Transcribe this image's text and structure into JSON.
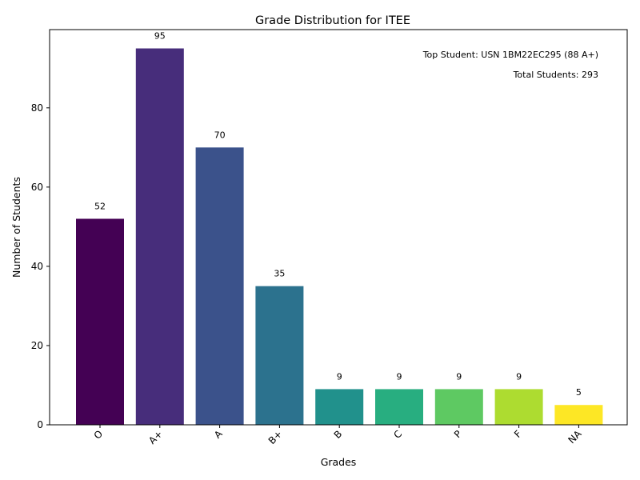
{
  "chart_data": {
    "type": "bar",
    "title": "Grade Distribution for ITEE",
    "xlabel": "Grades",
    "ylabel": "Number of Students",
    "categories": [
      "O",
      "A+",
      "A",
      "B+",
      "B",
      "C",
      "P",
      "F",
      "NA"
    ],
    "values": [
      52,
      95,
      70,
      35,
      9,
      9,
      9,
      9,
      5
    ],
    "value_labels": [
      "52",
      "95",
      "70",
      "35",
      "9",
      "9",
      "9",
      "9",
      "5"
    ],
    "colors": [
      "#440154",
      "#472d7b",
      "#3b528b",
      "#2c728e",
      "#21918c",
      "#28ae80",
      "#5ec962",
      "#addc30",
      "#fde725"
    ],
    "ylim": [
      0,
      99.75
    ],
    "yticks": [
      0,
      20,
      40,
      60,
      80
    ],
    "ytick_labels": [
      "0",
      "20",
      "40",
      "60",
      "80"
    ],
    "grid": false,
    "legend": "none",
    "annotations": [
      "Top Student: USN 1BM22EC295 (88 A+)",
      "Total Students: 293"
    ]
  }
}
